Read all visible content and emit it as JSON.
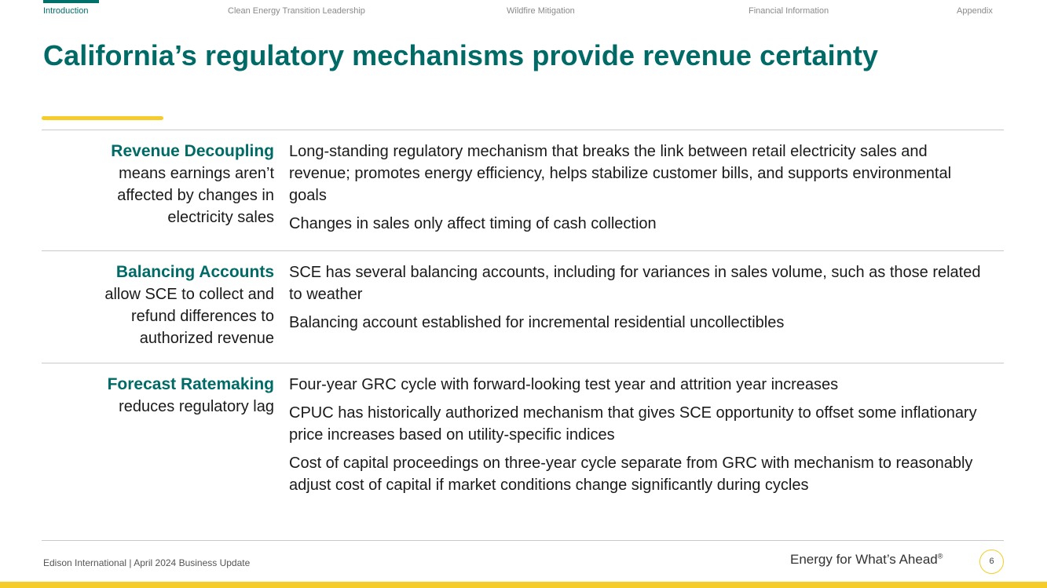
{
  "nav": {
    "items": [
      {
        "label": "Introduction",
        "active": true
      },
      {
        "label": "Clean Energy Transition Leadership",
        "active": false
      },
      {
        "label": "Wildfire Mitigation",
        "active": false
      },
      {
        "label": "Financial Information",
        "active": false
      },
      {
        "label": "Appendix",
        "active": false
      }
    ]
  },
  "title": "California’s regulatory mechanisms provide revenue certainty",
  "rows": [
    {
      "heading": "Revenue Decoupling",
      "desc_lines": [
        "means earnings aren’t",
        "affected by changes in",
        "electricity sales"
      ],
      "bullets": [
        "Long-standing regulatory mechanism that breaks the link between retail electricity sales and revenue; promotes energy efficiency, helps stabilize customer bills, and supports environmental goals",
        "Changes in sales only affect timing of cash collection"
      ]
    },
    {
      "heading": "Balancing Accounts",
      "desc_lines": [
        "allow SCE to collect and",
        "refund differences to",
        "authorized revenue"
      ],
      "bullets": [
        "SCE has several balancing accounts, including for variances in sales volume, such as those related to weather",
        "Balancing account established for incremental residential uncollectibles"
      ]
    },
    {
      "heading": "Forecast Ratemaking",
      "desc_lines": [
        "reduces regulatory lag"
      ],
      "bullets": [
        "Four-year GRC cycle with forward-looking test year and attrition year increases",
        "CPUC has historically authorized mechanism that gives SCE opportunity to offset some inflationary price increases based on utility-specific indices",
        "Cost of capital proceedings on three-year cycle separate from GRC with mechanism to reasonably adjust cost of capital if market conditions change significantly during cycles"
      ]
    }
  ],
  "footer": {
    "left": "Edison International | April 2024 Business Update",
    "tagline": "Energy for What’s Ahead",
    "tagline_mark": "®",
    "page_number": "6"
  },
  "colors": {
    "brand_teal": "#006b66",
    "accent_yellow": "#f5cc2a",
    "nav_muted": "#8a8a8a"
  }
}
